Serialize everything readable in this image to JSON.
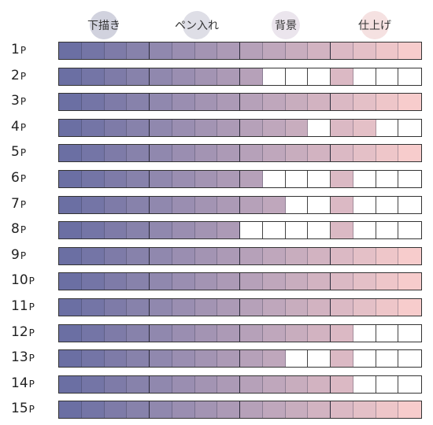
{
  "stages": [
    {
      "label": "下描き",
      "circle_color": "#c9cad8"
    },
    {
      "label": "ペン入れ",
      "circle_color": "#d8d8e2"
    },
    {
      "label": "背景",
      "circle_color": "#e8e0ea"
    },
    {
      "label": "仕上げ",
      "circle_color": "#f3dcdc"
    }
  ],
  "cells_per_stage": 4,
  "colors": {
    "start": "#6b6fa3",
    "end": "#f7cccc",
    "empty": "#ffffff"
  },
  "pages": [
    {
      "number": "1",
      "suffix": "P",
      "filled": [
        4,
        4,
        4,
        4
      ]
    },
    {
      "number": "2",
      "suffix": "P",
      "filled": [
        4,
        4,
        1,
        1
      ]
    },
    {
      "number": "3",
      "suffix": "P",
      "filled": [
        4,
        4,
        4,
        4
      ]
    },
    {
      "number": "4",
      "suffix": "P",
      "filled": [
        4,
        4,
        3,
        2
      ]
    },
    {
      "number": "5",
      "suffix": "P",
      "filled": [
        4,
        4,
        4,
        4
      ]
    },
    {
      "number": "6",
      "suffix": "P",
      "filled": [
        4,
        4,
        1,
        1
      ]
    },
    {
      "number": "7",
      "suffix": "P",
      "filled": [
        4,
        4,
        2,
        1
      ]
    },
    {
      "number": "8",
      "suffix": "P",
      "filled": [
        4,
        4,
        0,
        1
      ]
    },
    {
      "number": "9",
      "suffix": "P",
      "filled": [
        4,
        4,
        4,
        4
      ]
    },
    {
      "number": "10",
      "suffix": "P",
      "filled": [
        4,
        4,
        4,
        4
      ]
    },
    {
      "number": "11",
      "suffix": "P",
      "filled": [
        4,
        4,
        4,
        4
      ]
    },
    {
      "number": "12",
      "suffix": "P",
      "filled": [
        4,
        4,
        4,
        1
      ]
    },
    {
      "number": "13",
      "suffix": "P",
      "filled": [
        4,
        4,
        2,
        1
      ]
    },
    {
      "number": "14",
      "suffix": "P",
      "filled": [
        4,
        4,
        4,
        1
      ]
    },
    {
      "number": "15",
      "suffix": "P",
      "filled": [
        4,
        4,
        4,
        4
      ]
    }
  ]
}
